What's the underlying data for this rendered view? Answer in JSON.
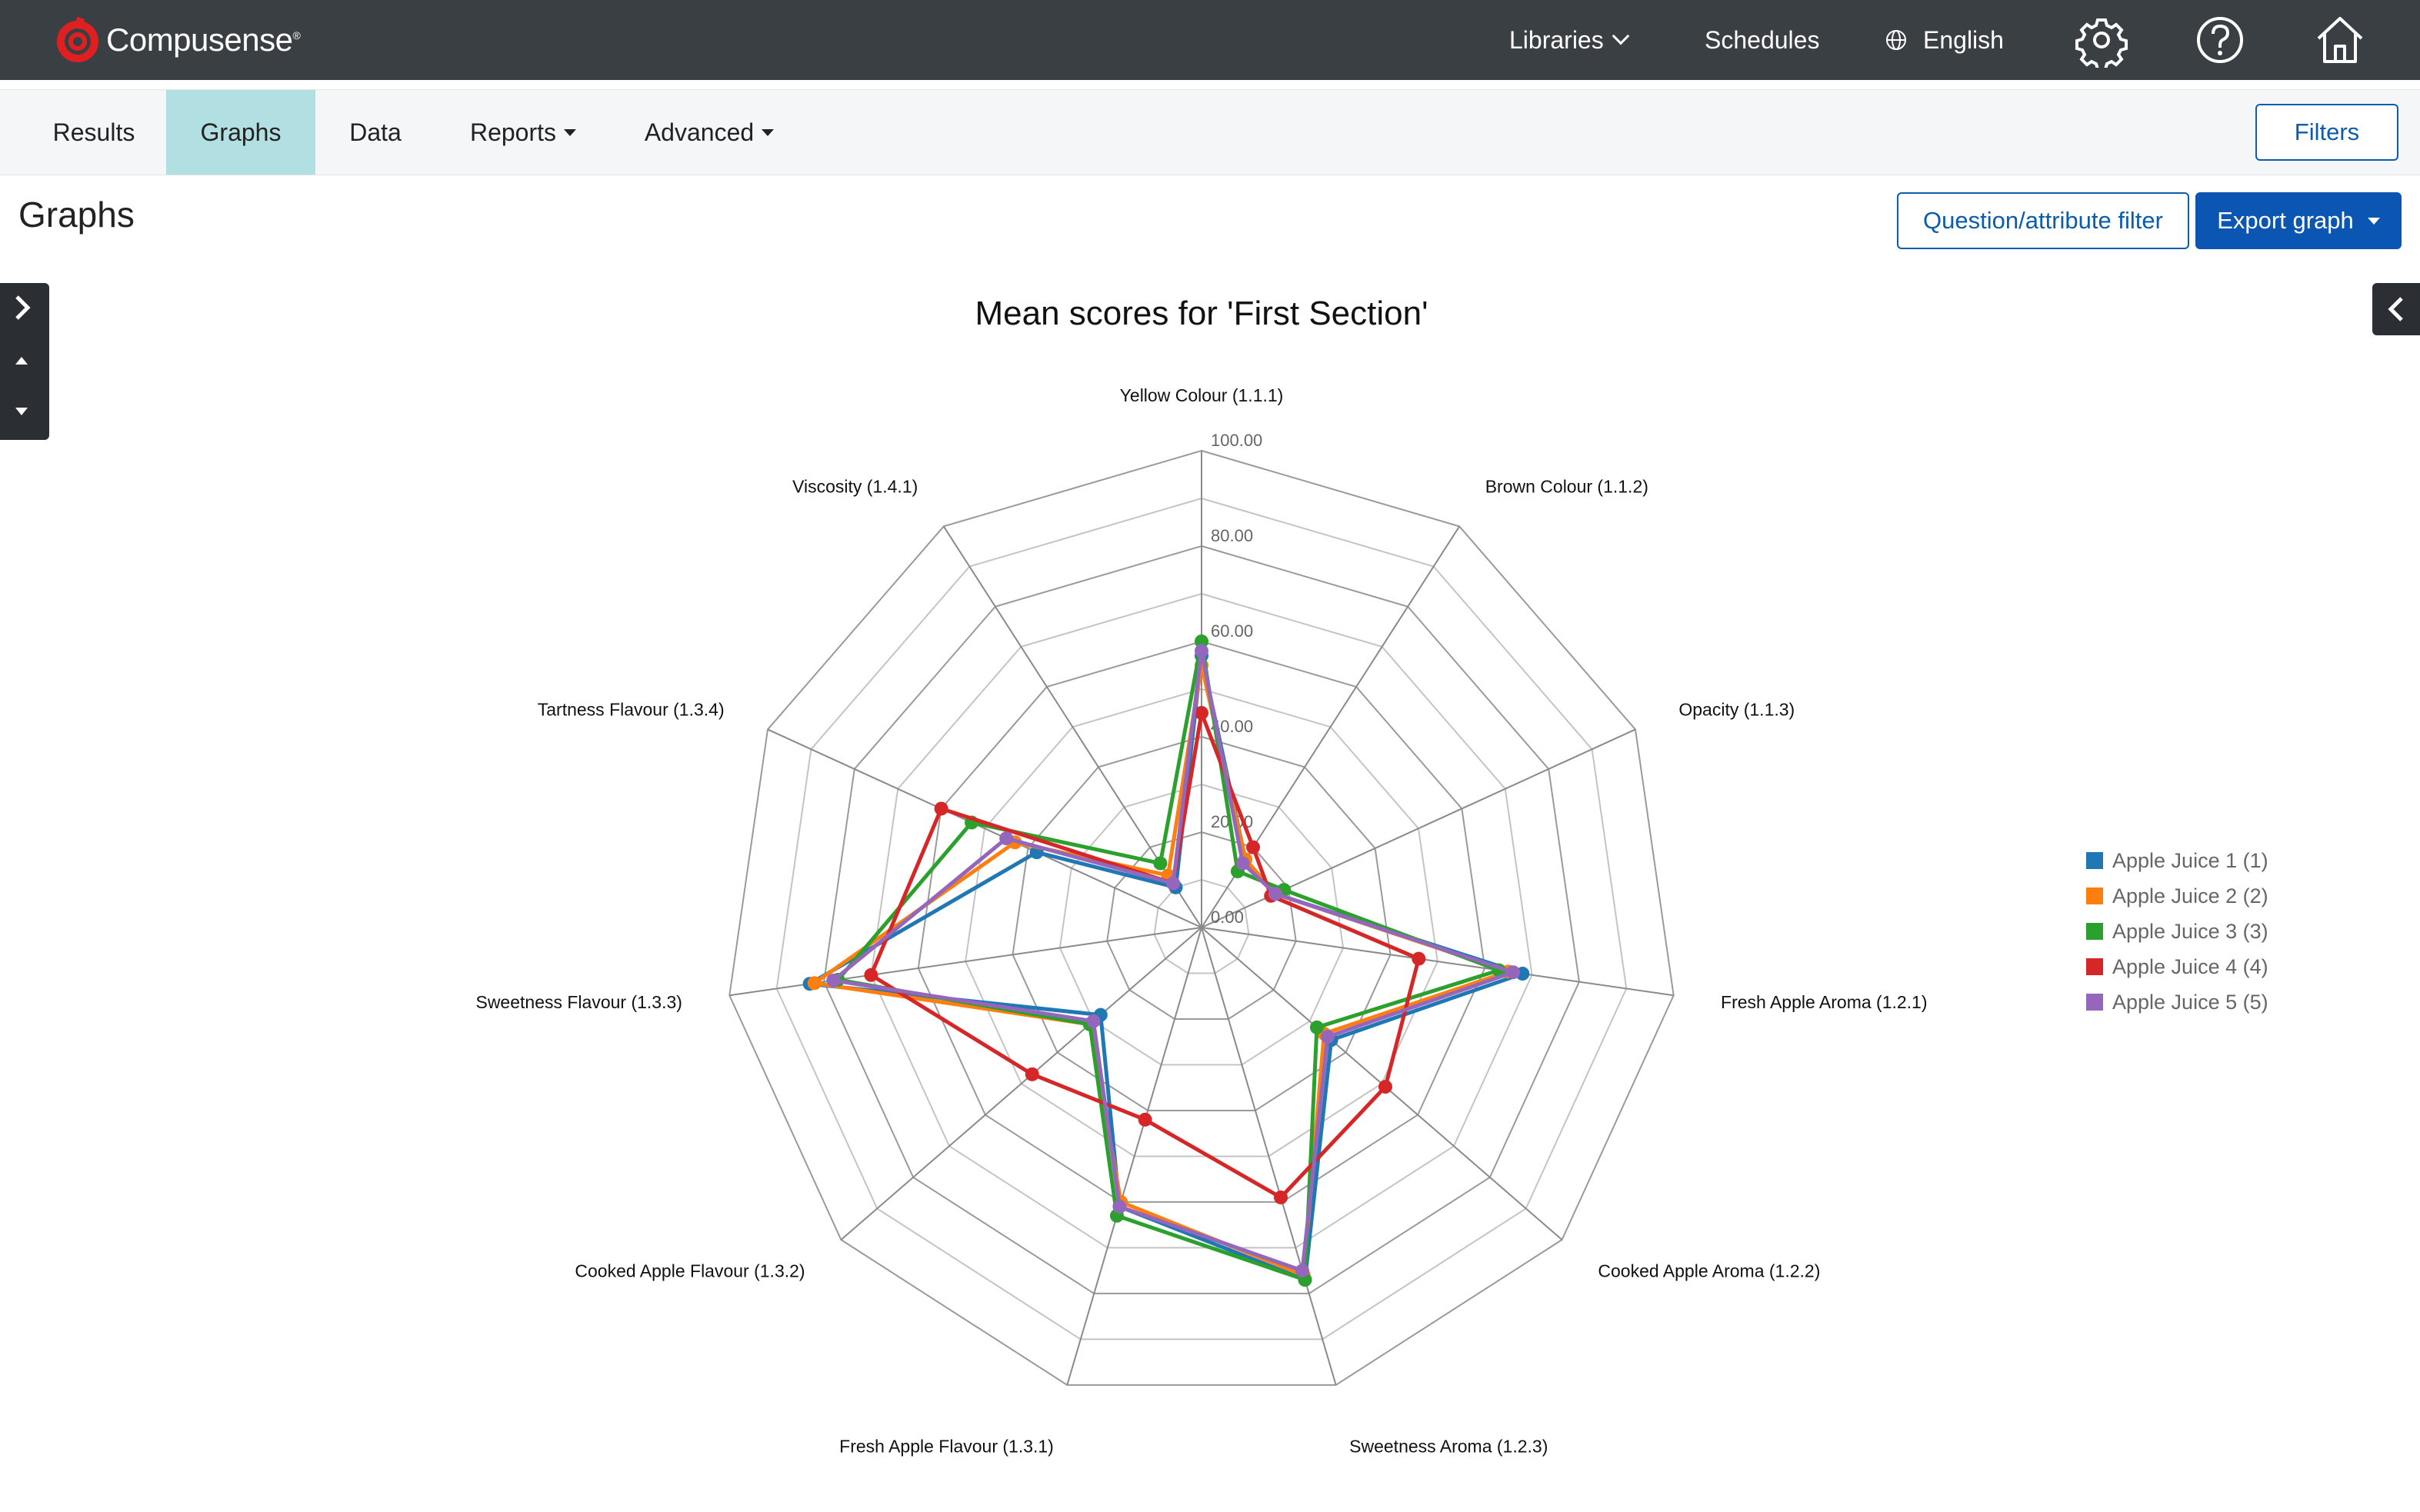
{
  "app": {
    "brand": "Compusense",
    "brand_mark": "®"
  },
  "topnav": {
    "libraries": "Libraries",
    "schedules": "Schedules",
    "language": "English",
    "icons": [
      "globe-icon",
      "settings-icon",
      "help-icon",
      "home-icon"
    ]
  },
  "tabs": [
    {
      "label": "Results",
      "active": false
    },
    {
      "label": "Graphs",
      "active": true
    },
    {
      "label": "Data",
      "active": false
    },
    {
      "label": "Reports",
      "active": false
    },
    {
      "label": "Advanced",
      "active": false
    }
  ],
  "filters_label": "Filters",
  "page": {
    "title": "Graphs",
    "question_filter_label": "Question/attribute filter",
    "export_label": "Export graph"
  },
  "colors": {
    "topbar": "#3a3f44",
    "active_tab": "#b2dfe2",
    "primary": "#0b55b3"
  },
  "chart_data": {
    "type": "radar",
    "title": "Mean scores for 'First Section'",
    "axes": [
      "Yellow Colour (1.1.1)",
      "Brown Colour (1.1.2)",
      "Opacity (1.1.3)",
      "Fresh Apple Aroma (1.2.1)",
      "Cooked Apple Aroma (1.2.2)",
      "Sweetness Aroma (1.2.3)",
      "Fresh Apple Flavour (1.3.1)",
      "Cooked Apple Flavour (1.3.2)",
      "Sweetness Flavour (1.3.3)",
      "Tartness Flavour (1.3.4)",
      "Viscosity (1.4.1)"
    ],
    "r_range": [
      0,
      100
    ],
    "r_ticks": [
      "0.00",
      "20.00",
      "40.00",
      "60.00",
      "80.00",
      "100.00"
    ],
    "grid": true,
    "legend_position": "right",
    "series": [
      {
        "name": "Apple Juice 1 (1)",
        "color": "#1f77b4",
        "values": [
          57,
          17,
          17,
          68,
          36,
          77,
          61,
          28,
          83,
          38,
          10
        ]
      },
      {
        "name": "Apple Juice 2 (2)",
        "color": "#ff7f0e",
        "values": [
          55,
          17,
          17,
          65,
          34,
          76,
          60,
          31,
          82,
          43,
          13
        ]
      },
      {
        "name": "Apple Juice 3 (3)",
        "color": "#2ca02c",
        "values": [
          60,
          14,
          19,
          63,
          32,
          77,
          63,
          31,
          77,
          53,
          16
        ]
      },
      {
        "name": "Apple Juice 4 (4)",
        "color": "#d62728",
        "values": [
          45,
          20,
          16,
          46,
          51,
          59,
          42,
          47,
          70,
          60,
          11
        ]
      },
      {
        "name": "Apple Juice 5 (5)",
        "color": "#9467bd",
        "values": [
          58,
          16,
          17,
          66,
          35,
          75,
          61,
          30,
          78,
          45,
          11
        ]
      }
    ]
  }
}
